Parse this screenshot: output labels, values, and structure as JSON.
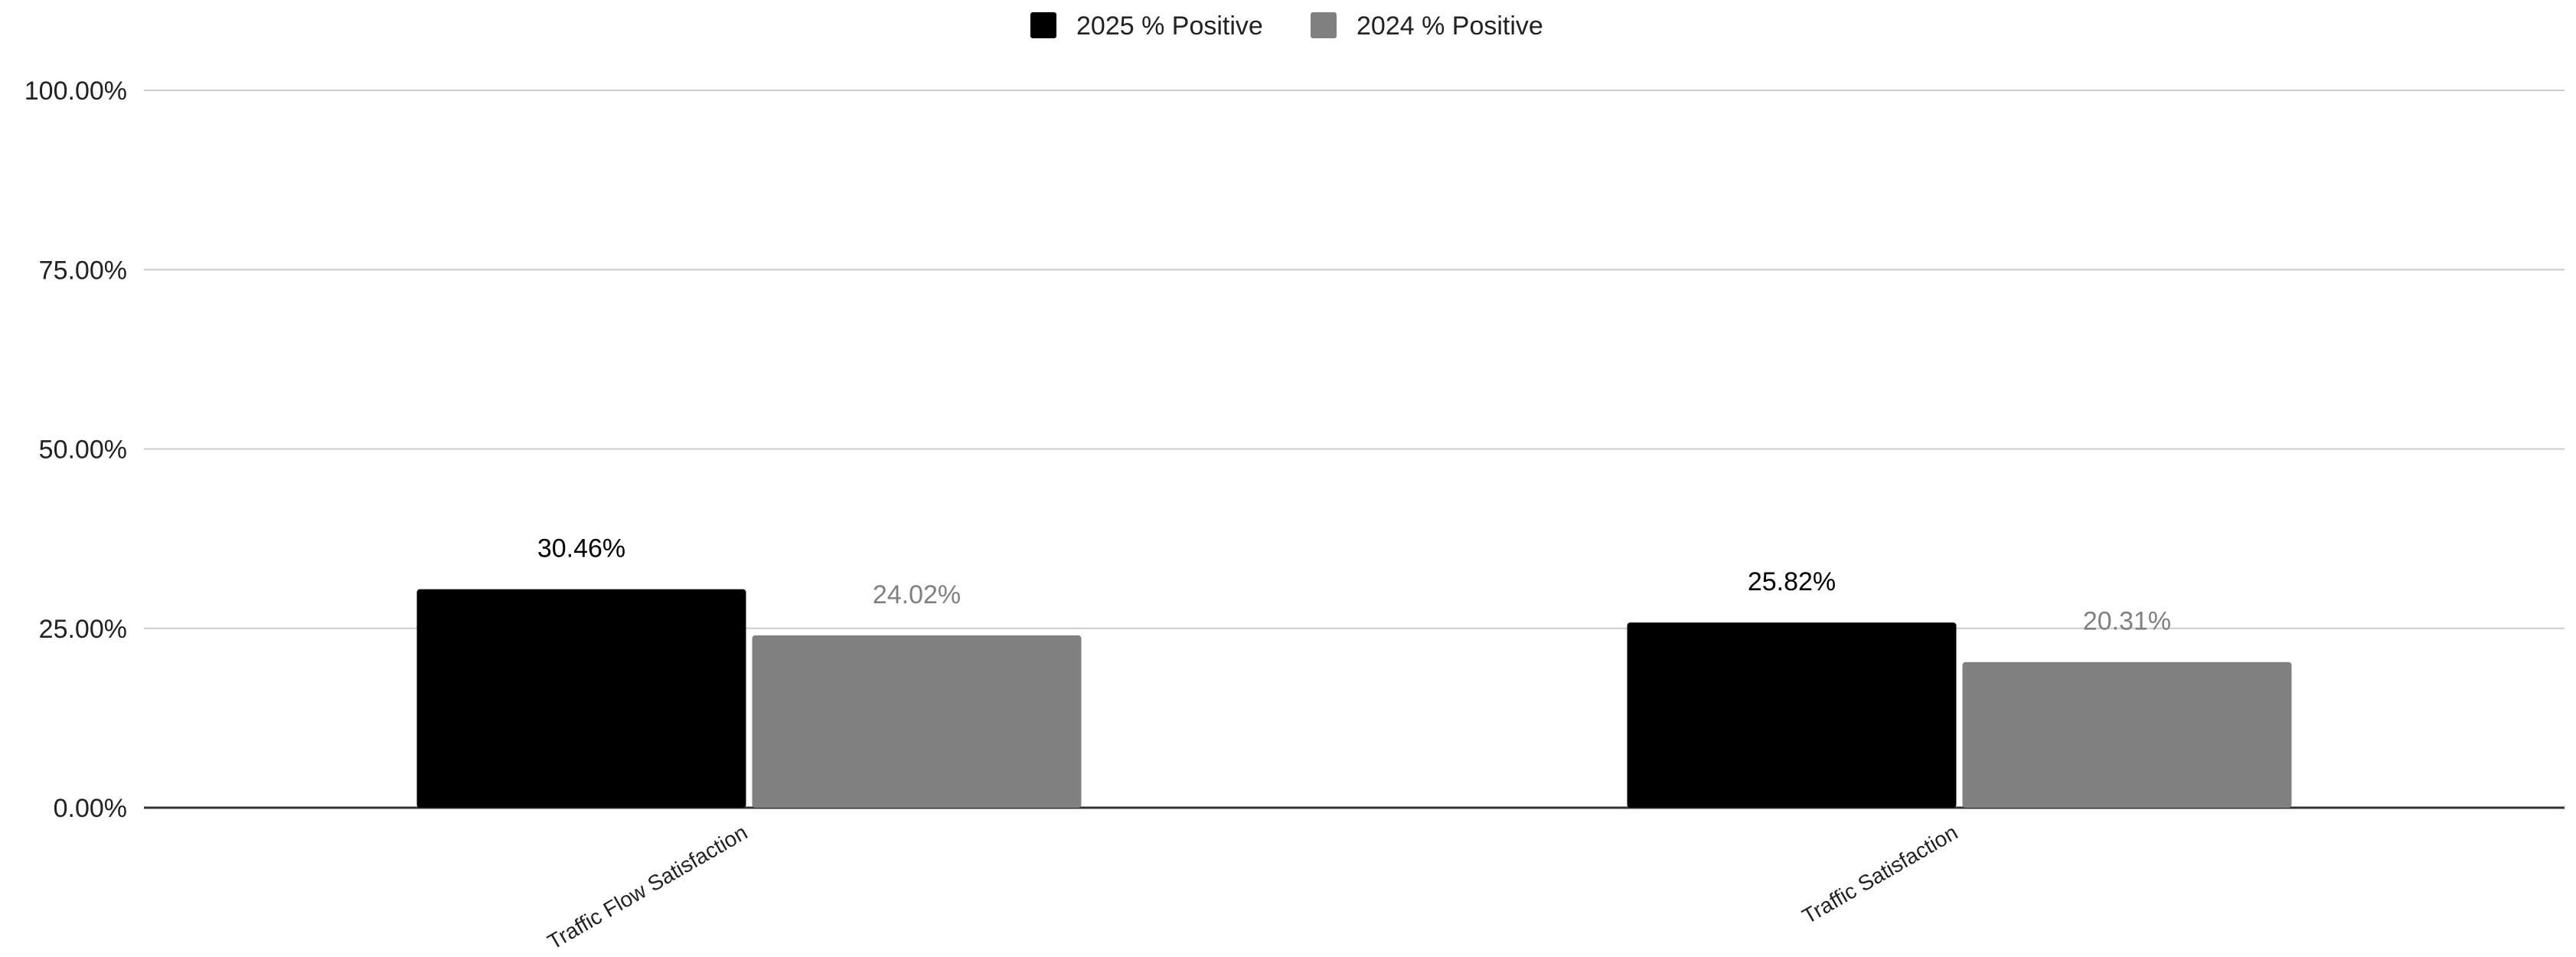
{
  "chart_data": {
    "type": "bar",
    "categories": [
      "Traffic Flow Satisfaction",
      "Traffic Satisfaction"
    ],
    "series": [
      {
        "name": "2025 % Positive",
        "values": [
          30.46,
          25.82
        ],
        "labels": [
          "30.46%",
          "25.82%"
        ],
        "color": "#000000",
        "label_color": "#000000"
      },
      {
        "name": "2024 % Positive",
        "values": [
          24.02,
          20.31
        ],
        "labels": [
          "24.02%",
          "20.31%"
        ],
        "color": "#808080",
        "label_color": "#808080"
      }
    ],
    "y_ticks": [
      0,
      25,
      50,
      75,
      100
    ],
    "y_tick_labels": [
      "0.00%",
      "25.00%",
      "50.00%",
      "75.00%",
      "100.00%"
    ],
    "ylim": [
      0,
      100
    ],
    "grid": true,
    "legend_position": "top-center"
  }
}
